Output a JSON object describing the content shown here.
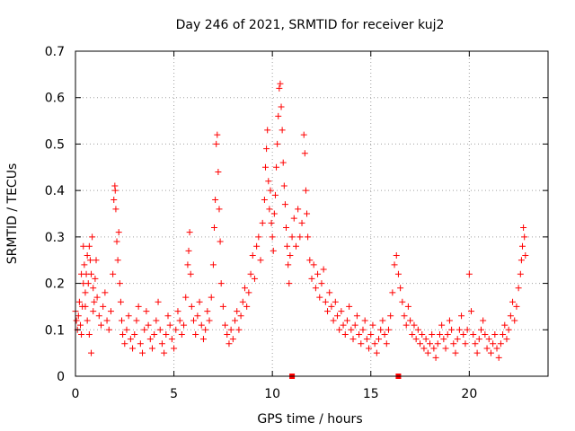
{
  "chart_data": {
    "type": "scatter",
    "title": "Day 246 of 2021, SRMTID for receiver kuj2",
    "xlabel": "GPS time / hours",
    "ylabel": "SRMTID / TECUs",
    "xlim": [
      0,
      24
    ],
    "ylim": [
      0,
      0.7
    ],
    "xticks": [
      0,
      5,
      10,
      15,
      20
    ],
    "xtick_labels": [
      "0",
      "5",
      "10",
      "15",
      "20"
    ],
    "yticks": [
      0,
      0.1,
      0.2,
      0.3,
      0.4,
      0.5,
      0.6,
      0.7
    ],
    "ytick_labels": [
      "0",
      "0.1",
      "0.2",
      "0.3",
      "0.4",
      "0.5",
      "0.6",
      "0.7"
    ],
    "grid": true,
    "marker": "plus",
    "color": "#ff0000",
    "series": [
      {
        "name": "SRMTID",
        "points": [
          [
            0.0,
            0.14
          ],
          [
            0.05,
            0.12
          ],
          [
            0.1,
            0.1
          ],
          [
            0.15,
            0.13
          ],
          [
            0.2,
            0.16
          ],
          [
            0.25,
            0.11
          ],
          [
            0.3,
            0.09
          ],
          [
            0.35,
            0.15
          ],
          [
            0.4,
            0.2
          ],
          [
            0.45,
            0.24
          ],
          [
            0.5,
            0.18
          ],
          [
            0.55,
            0.22
          ],
          [
            0.6,
            0.26
          ],
          [
            0.65,
            0.2
          ],
          [
            0.7,
            0.28
          ],
          [
            0.75,
            0.25
          ],
          [
            0.8,
            0.22
          ],
          [
            0.85,
            0.3
          ],
          [
            0.9,
            0.19
          ],
          [
            0.95,
            0.16
          ],
          [
            0.3,
            0.22
          ],
          [
            0.4,
            0.28
          ],
          [
            0.5,
            0.15
          ],
          [
            0.6,
            0.12
          ],
          [
            0.7,
            0.09
          ],
          [
            0.8,
            0.05
          ],
          [
            0.9,
            0.14
          ],
          [
            1.0,
            0.21
          ],
          [
            1.05,
            0.25
          ],
          [
            1.1,
            0.17
          ],
          [
            1.2,
            0.13
          ],
          [
            1.3,
            0.11
          ],
          [
            1.4,
            0.15
          ],
          [
            1.5,
            0.18
          ],
          [
            1.6,
            0.12
          ],
          [
            1.7,
            0.1
          ],
          [
            1.8,
            0.14
          ],
          [
            1.9,
            0.22
          ],
          [
            1.95,
            0.38
          ],
          [
            2.0,
            0.41
          ],
          [
            2.02,
            0.4
          ],
          [
            2.05,
            0.36
          ],
          [
            2.1,
            0.29
          ],
          [
            2.15,
            0.25
          ],
          [
            2.2,
            0.31
          ],
          [
            2.25,
            0.2
          ],
          [
            2.3,
            0.16
          ],
          [
            2.35,
            0.12
          ],
          [
            2.4,
            0.09
          ],
          [
            2.5,
            0.07
          ],
          [
            2.6,
            0.1
          ],
          [
            2.7,
            0.13
          ],
          [
            2.8,
            0.08
          ],
          [
            2.9,
            0.06
          ],
          [
            3.0,
            0.09
          ],
          [
            3.1,
            0.12
          ],
          [
            3.2,
            0.15
          ],
          [
            3.3,
            0.07
          ],
          [
            3.4,
            0.05
          ],
          [
            3.5,
            0.1
          ],
          [
            3.6,
            0.14
          ],
          [
            3.7,
            0.11
          ],
          [
            3.8,
            0.08
          ],
          [
            3.9,
            0.06
          ],
          [
            4.0,
            0.09
          ],
          [
            4.1,
            0.12
          ],
          [
            4.2,
            0.16
          ],
          [
            4.3,
            0.1
          ],
          [
            4.4,
            0.07
          ],
          [
            4.5,
            0.05
          ],
          [
            4.6,
            0.09
          ],
          [
            4.7,
            0.13
          ],
          [
            4.8,
            0.11
          ],
          [
            4.9,
            0.08
          ],
          [
            5.0,
            0.06
          ],
          [
            5.1,
            0.1
          ],
          [
            5.2,
            0.14
          ],
          [
            5.3,
            0.12
          ],
          [
            5.4,
            0.09
          ],
          [
            5.5,
            0.11
          ],
          [
            5.6,
            0.17
          ],
          [
            5.7,
            0.24
          ],
          [
            5.75,
            0.27
          ],
          [
            5.8,
            0.31
          ],
          [
            5.85,
            0.22
          ],
          [
            5.9,
            0.15
          ],
          [
            6.0,
            0.12
          ],
          [
            6.1,
            0.09
          ],
          [
            6.2,
            0.13
          ],
          [
            6.3,
            0.16
          ],
          [
            6.4,
            0.11
          ],
          [
            6.5,
            0.08
          ],
          [
            6.6,
            0.1
          ],
          [
            6.7,
            0.14
          ],
          [
            6.8,
            0.12
          ],
          [
            6.9,
            0.17
          ],
          [
            7.0,
            0.24
          ],
          [
            7.05,
            0.32
          ],
          [
            7.1,
            0.38
          ],
          [
            7.15,
            0.5
          ],
          [
            7.2,
            0.52
          ],
          [
            7.25,
            0.44
          ],
          [
            7.3,
            0.36
          ],
          [
            7.35,
            0.29
          ],
          [
            7.4,
            0.2
          ],
          [
            7.5,
            0.15
          ],
          [
            7.6,
            0.11
          ],
          [
            7.7,
            0.09
          ],
          [
            7.8,
            0.07
          ],
          [
            7.9,
            0.1
          ],
          [
            8.0,
            0.08
          ],
          [
            8.1,
            0.12
          ],
          [
            8.2,
            0.14
          ],
          [
            8.3,
            0.1
          ],
          [
            8.4,
            0.13
          ],
          [
            8.5,
            0.16
          ],
          [
            8.6,
            0.19
          ],
          [
            8.7,
            0.15
          ],
          [
            8.8,
            0.18
          ],
          [
            8.9,
            0.22
          ],
          [
            9.0,
            0.26
          ],
          [
            9.1,
            0.21
          ],
          [
            9.2,
            0.28
          ],
          [
            9.3,
            0.3
          ],
          [
            9.4,
            0.25
          ],
          [
            9.5,
            0.33
          ],
          [
            9.6,
            0.38
          ],
          [
            9.65,
            0.45
          ],
          [
            9.7,
            0.49
          ],
          [
            9.75,
            0.53
          ],
          [
            9.8,
            0.42
          ],
          [
            9.85,
            0.36
          ],
          [
            9.9,
            0.4
          ],
          [
            9.95,
            0.33
          ],
          [
            10.0,
            0.3
          ],
          [
            10.05,
            0.27
          ],
          [
            10.1,
            0.35
          ],
          [
            10.15,
            0.39
          ],
          [
            10.2,
            0.45
          ],
          [
            10.25,
            0.5
          ],
          [
            10.3,
            0.56
          ],
          [
            10.35,
            0.62
          ],
          [
            10.4,
            0.63
          ],
          [
            10.45,
            0.58
          ],
          [
            10.5,
            0.53
          ],
          [
            10.55,
            0.46
          ],
          [
            10.6,
            0.41
          ],
          [
            10.65,
            0.37
          ],
          [
            10.7,
            0.32
          ],
          [
            10.75,
            0.28
          ],
          [
            10.8,
            0.24
          ],
          [
            10.85,
            0.2
          ],
          [
            10.9,
            0.26
          ],
          [
            11.0,
            0.3
          ],
          [
            11.1,
            0.34
          ],
          [
            11.2,
            0.28
          ],
          [
            11.3,
            0.36
          ],
          [
            11.4,
            0.3
          ],
          [
            11.5,
            0.33
          ],
          [
            11.6,
            0.52
          ],
          [
            11.65,
            0.48
          ],
          [
            11.7,
            0.4
          ],
          [
            11.75,
            0.35
          ],
          [
            11.8,
            0.3
          ],
          [
            11.9,
            0.25
          ],
          [
            12.0,
            0.21
          ],
          [
            12.1,
            0.24
          ],
          [
            12.2,
            0.19
          ],
          [
            12.3,
            0.22
          ],
          [
            12.4,
            0.17
          ],
          [
            12.5,
            0.2
          ],
          [
            12.6,
            0.23
          ],
          [
            12.7,
            0.16
          ],
          [
            12.8,
            0.14
          ],
          [
            12.9,
            0.18
          ],
          [
            13.0,
            0.15
          ],
          [
            13.1,
            0.12
          ],
          [
            13.2,
            0.16
          ],
          [
            13.3,
            0.13
          ],
          [
            13.4,
            0.1
          ],
          [
            13.5,
            0.14
          ],
          [
            13.6,
            0.11
          ],
          [
            13.7,
            0.09
          ],
          [
            13.8,
            0.12
          ],
          [
            13.9,
            0.15
          ],
          [
            14.0,
            0.1
          ],
          [
            14.1,
            0.08
          ],
          [
            14.2,
            0.11
          ],
          [
            14.3,
            0.13
          ],
          [
            14.4,
            0.09
          ],
          [
            14.5,
            0.07
          ],
          [
            14.6,
            0.1
          ],
          [
            14.7,
            0.12
          ],
          [
            14.8,
            0.08
          ],
          [
            14.9,
            0.06
          ],
          [
            15.0,
            0.09
          ],
          [
            15.1,
            0.11
          ],
          [
            15.2,
            0.07
          ],
          [
            15.3,
            0.05
          ],
          [
            15.4,
            0.08
          ],
          [
            15.5,
            0.1
          ],
          [
            15.6,
            0.12
          ],
          [
            15.7,
            0.09
          ],
          [
            15.8,
            0.07
          ],
          [
            15.9,
            0.1
          ],
          [
            16.0,
            0.13
          ],
          [
            16.1,
            0.18
          ],
          [
            16.2,
            0.24
          ],
          [
            16.3,
            0.26
          ],
          [
            16.4,
            0.22
          ],
          [
            16.5,
            0.19
          ],
          [
            16.6,
            0.16
          ],
          [
            16.7,
            0.13
          ],
          [
            16.8,
            0.11
          ],
          [
            16.9,
            0.15
          ],
          [
            17.0,
            0.12
          ],
          [
            17.1,
            0.09
          ],
          [
            17.2,
            0.11
          ],
          [
            17.3,
            0.08
          ],
          [
            17.4,
            0.1
          ],
          [
            17.5,
            0.07
          ],
          [
            17.6,
            0.09
          ],
          [
            17.7,
            0.06
          ],
          [
            17.8,
            0.08
          ],
          [
            17.9,
            0.05
          ],
          [
            18.0,
            0.07
          ],
          [
            18.1,
            0.09
          ],
          [
            18.2,
            0.06
          ],
          [
            18.3,
            0.04
          ],
          [
            18.4,
            0.07
          ],
          [
            18.5,
            0.09
          ],
          [
            18.6,
            0.11
          ],
          [
            18.7,
            0.08
          ],
          [
            18.8,
            0.06
          ],
          [
            18.9,
            0.09
          ],
          [
            19.0,
            0.12
          ],
          [
            19.1,
            0.1
          ],
          [
            19.2,
            0.07
          ],
          [
            19.3,
            0.05
          ],
          [
            19.4,
            0.08
          ],
          [
            19.5,
            0.1
          ],
          [
            19.6,
            0.13
          ],
          [
            19.7,
            0.09
          ],
          [
            19.8,
            0.07
          ],
          [
            19.9,
            0.1
          ],
          [
            20.0,
            0.22
          ],
          [
            20.1,
            0.14
          ],
          [
            20.2,
            0.09
          ],
          [
            20.3,
            0.07
          ],
          [
            20.4,
            0.05
          ],
          [
            20.5,
            0.08
          ],
          [
            20.6,
            0.1
          ],
          [
            20.7,
            0.12
          ],
          [
            20.8,
            0.09
          ],
          [
            20.9,
            0.06
          ],
          [
            21.0,
            0.08
          ],
          [
            21.1,
            0.05
          ],
          [
            21.2,
            0.07
          ],
          [
            21.3,
            0.09
          ],
          [
            21.4,
            0.06
          ],
          [
            21.5,
            0.04
          ],
          [
            21.6,
            0.07
          ],
          [
            21.7,
            0.09
          ],
          [
            21.8,
            0.11
          ],
          [
            21.9,
            0.08
          ],
          [
            22.0,
            0.1
          ],
          [
            22.1,
            0.13
          ],
          [
            22.2,
            0.16
          ],
          [
            22.3,
            0.12
          ],
          [
            22.4,
            0.15
          ],
          [
            22.5,
            0.19
          ],
          [
            22.6,
            0.22
          ],
          [
            22.65,
            0.25
          ],
          [
            22.7,
            0.28
          ],
          [
            22.75,
            0.32
          ],
          [
            22.8,
            0.3
          ],
          [
            22.85,
            0.26
          ]
        ]
      }
    ],
    "x_axis_markers": [
      11.0,
      16.4
    ]
  }
}
